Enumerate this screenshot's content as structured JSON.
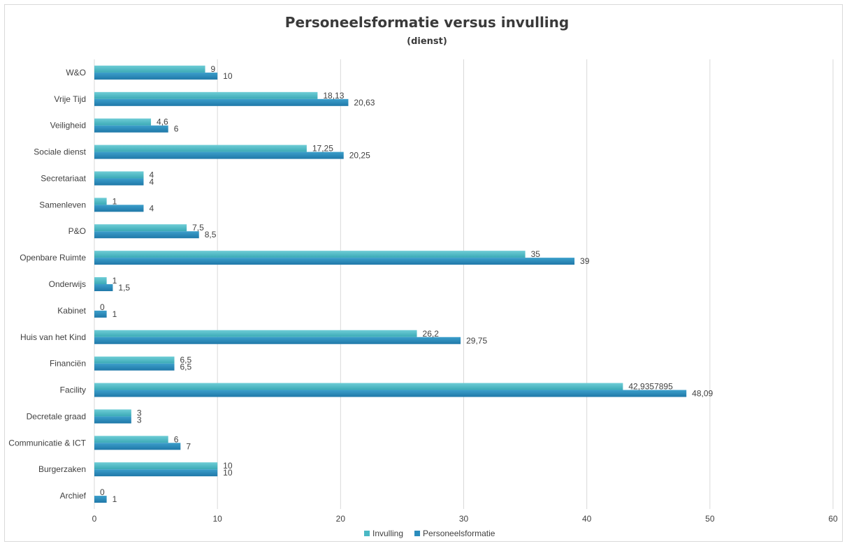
{
  "chart_data": {
    "type": "bar",
    "orientation": "horizontal",
    "title": "Personeelsformatie versus invulling",
    "subtitle": "(dienst)",
    "xlabel": "",
    "ylabel": "",
    "xlim": [
      0,
      60
    ],
    "x_ticks": [
      0,
      10,
      20,
      30,
      40,
      50,
      60
    ],
    "grid": true,
    "legend": "bottom",
    "categories": [
      "W&O",
      "Vrije Tijd",
      "Veiligheid",
      "Sociale dienst",
      "Secretariaat",
      "Samenleven",
      "P&O",
      "Openbare Ruimte",
      "Onderwijs",
      "Kabinet",
      "Huis van het Kind",
      "Financiën",
      "Facility",
      "Decretale graad",
      "Communicatie & ICT",
      "Burgerzaken",
      "Archief"
    ],
    "series": [
      {
        "name": "Invulling",
        "color": "#4ab8c4",
        "values": [
          9,
          18.13,
          4.6,
          17.25,
          4,
          1,
          7.5,
          35,
          1,
          0,
          26.2,
          6.5,
          42.9357895,
          3,
          6,
          10,
          0
        ],
        "labels": [
          "9",
          "18,13",
          "4,6",
          "17,25",
          "4",
          "1",
          "7,5",
          "35",
          "1",
          "0",
          "26,2",
          "6,5",
          "42,9357895",
          "3",
          "6",
          "10",
          "0"
        ]
      },
      {
        "name": "Personeelsformatie",
        "color": "#2a8cbc",
        "values": [
          10,
          20.63,
          6,
          20.25,
          4,
          4,
          8.5,
          39,
          1.5,
          1,
          29.75,
          6.5,
          48.09,
          3,
          7,
          10,
          1
        ],
        "labels": [
          "10",
          "20,63",
          "6",
          "20,25",
          "4",
          "4",
          "8,5",
          "39",
          "1,5",
          "1",
          "29,75",
          "6,5",
          "48,09",
          "3",
          "7",
          "10",
          "1"
        ]
      }
    ]
  }
}
